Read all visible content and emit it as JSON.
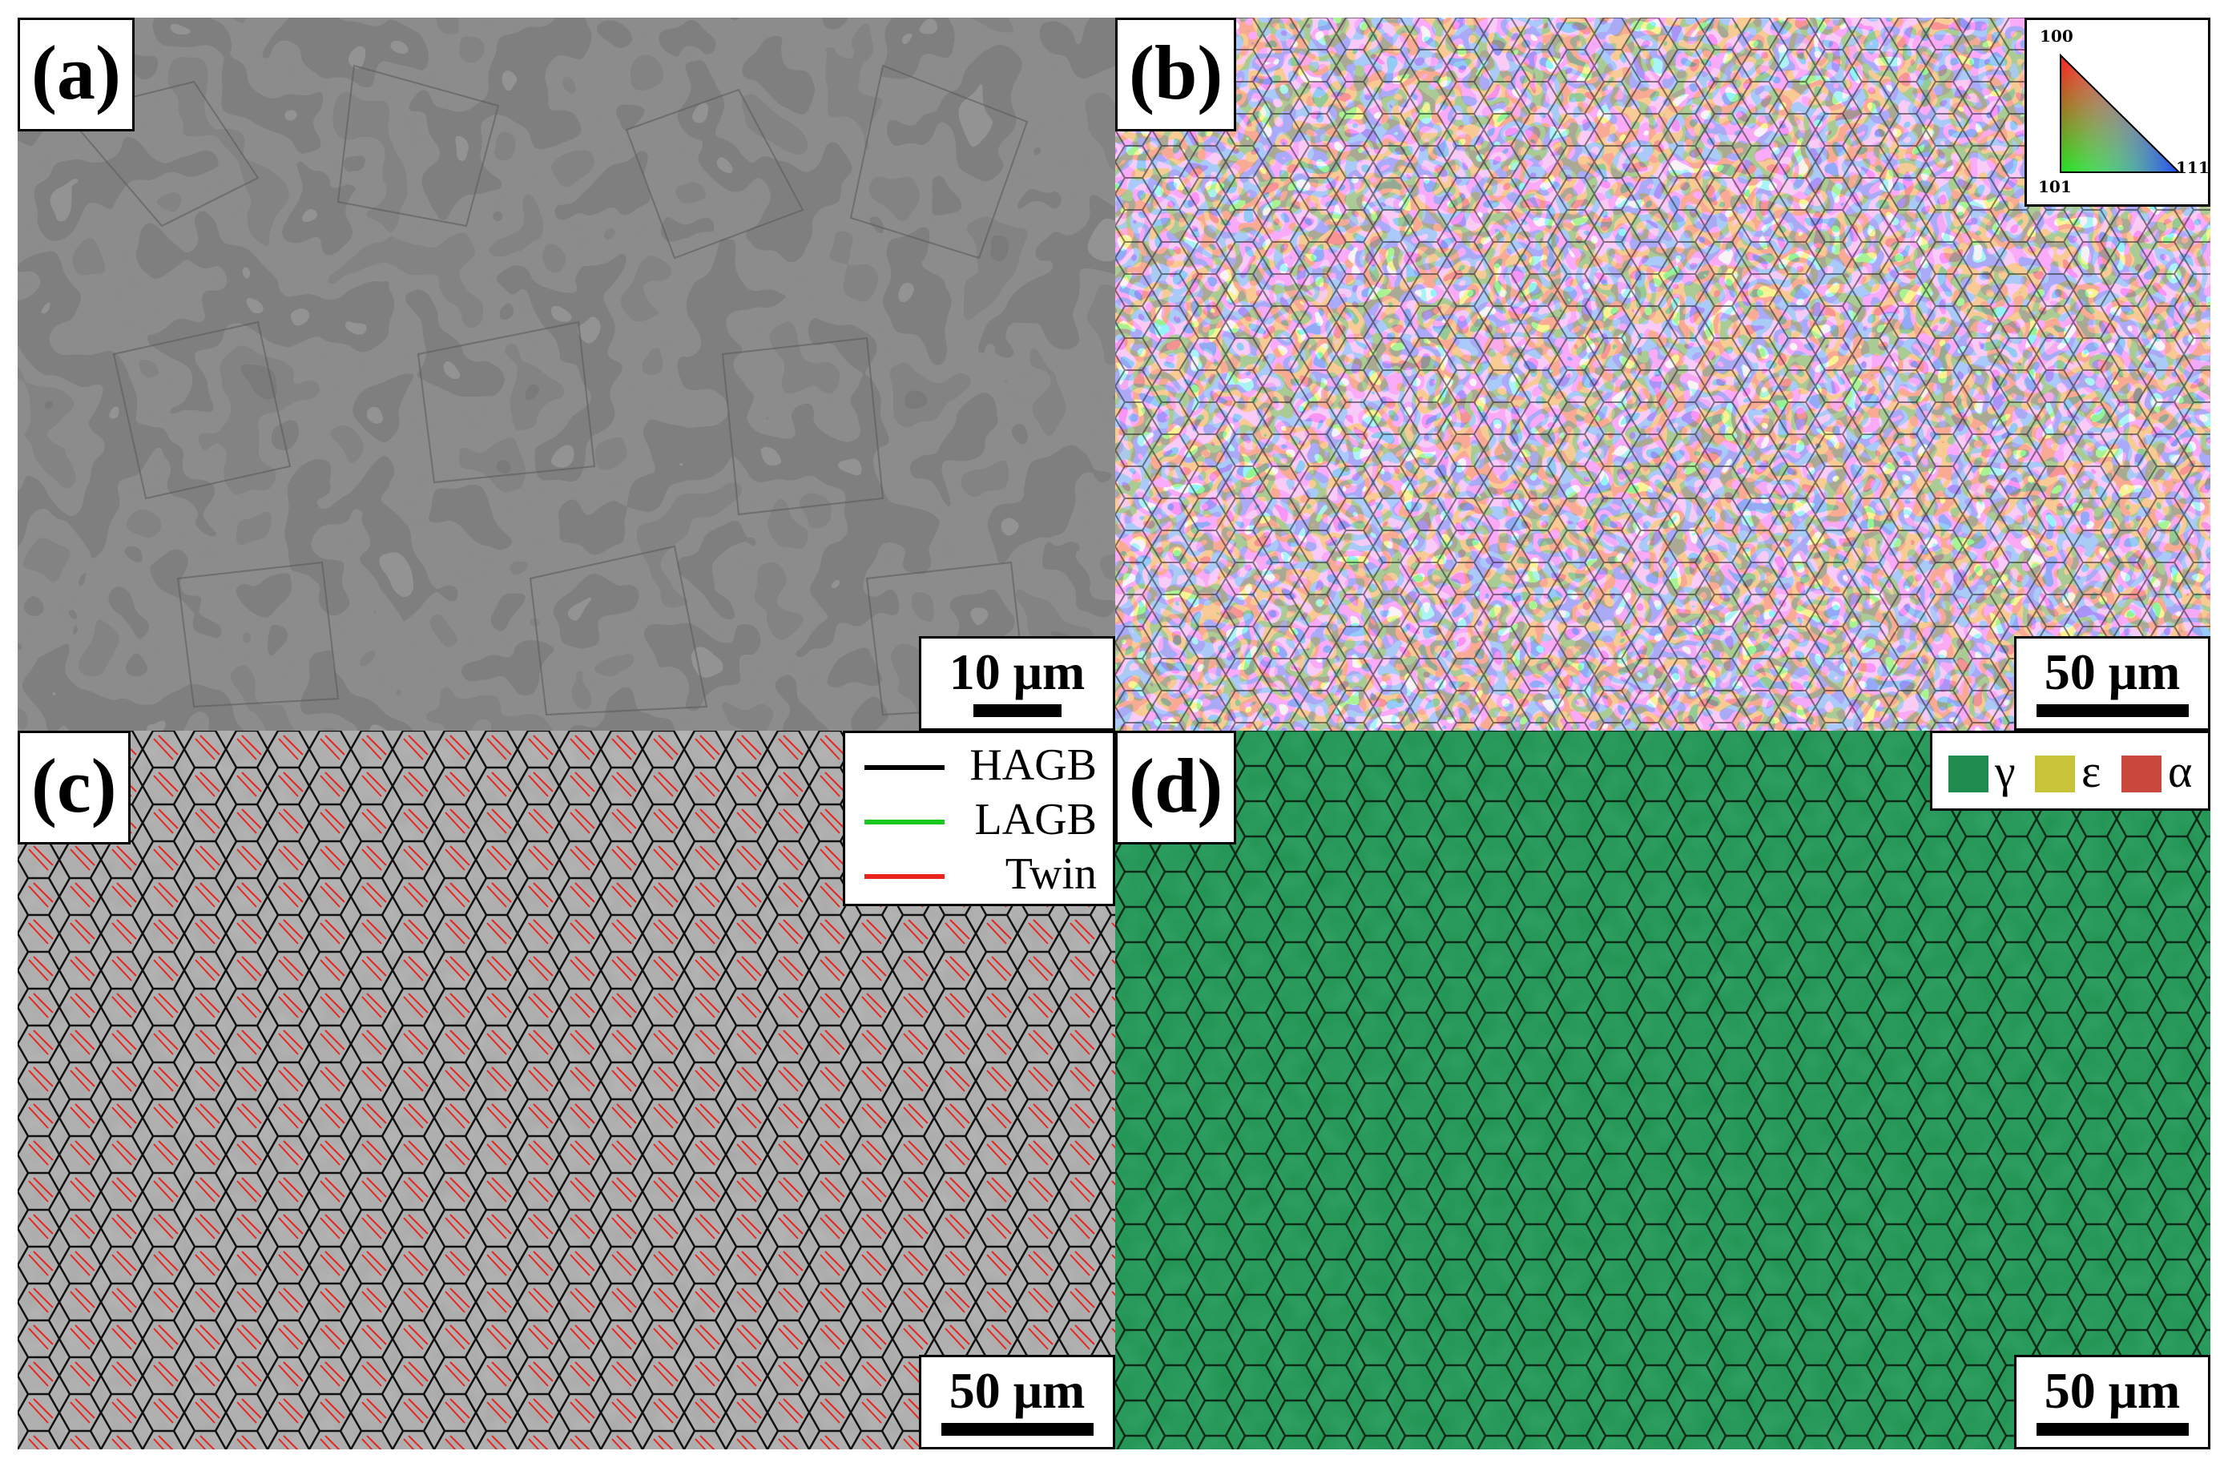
{
  "panels": {
    "a": {
      "label": "(a)",
      "scale_bar": "10 μm"
    },
    "b": {
      "label": "(b)",
      "scale_bar": "50 μm",
      "ipf_key": {
        "corner_top": "100",
        "corner_bottom_left": "101",
        "corner_right": "111"
      }
    },
    "c": {
      "label": "(c)",
      "scale_bar": "50 μm",
      "legend": [
        {
          "name": "HAGB",
          "color": "#000000"
        },
        {
          "name": "LAGB",
          "color": "#19c81e"
        },
        {
          "name": "Twin",
          "color": "#e8241c"
        }
      ]
    },
    "d": {
      "label": "(d)",
      "scale_bar": "50 μm",
      "legend": [
        {
          "symbol": "γ",
          "color": "#1e8c4e"
        },
        {
          "symbol": "ε",
          "color": "#c8c43a"
        },
        {
          "symbol": "α",
          "color": "#c9473c"
        }
      ]
    }
  },
  "colors": {
    "panel_a_base": "#7f7f7f",
    "panel_c_base": "#a8a8a8",
    "panel_d_base": "#1f9150"
  }
}
